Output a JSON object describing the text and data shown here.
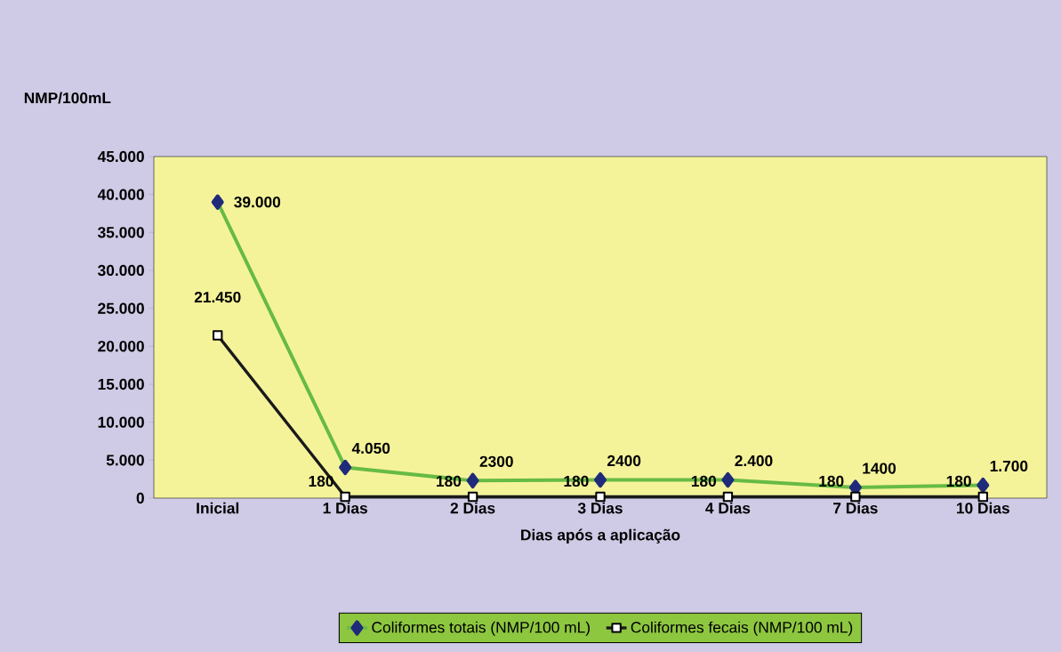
{
  "chart_data": {
    "type": "line",
    "annotations": [
      "NMP/100mL"
    ],
    "xlabel": "Dias após a aplicação",
    "categories": [
      "Inicial",
      "1 Dias",
      "2 Dias",
      "3 Dias",
      "4 Dias",
      "7 Dias",
      "10 Dias"
    ],
    "series": [
      {
        "name": "Coliformes totais (NMP/100 mL)",
        "color": "#66bb44",
        "marker": "diamond",
        "values": [
          39000,
          4050,
          2300,
          2400,
          2400,
          1400,
          1700
        ],
        "value_labels": [
          "39.000",
          "4.050",
          "2300",
          "2400",
          "2.400",
          "1400",
          "1.700"
        ]
      },
      {
        "name": "Coliformes fecais (NMP/100 mL)",
        "color": "#1a1a1a",
        "marker": "square",
        "values": [
          21450,
          180,
          180,
          180,
          180,
          180,
          180
        ],
        "value_labels": [
          "21.450",
          "180",
          "180",
          "180",
          "180",
          "180",
          "180"
        ]
      }
    ],
    "ylim": [
      0,
      45000
    ],
    "yticks": [
      0,
      {
        "value": 5000,
        "label": "5.000"
      },
      {
        "value": 10000,
        "label": "10.000"
      },
      {
        "value": 15000,
        "label": "15.000"
      },
      {
        "value": 20000,
        "label": "20.000"
      },
      {
        "value": 25000,
        "label": "25.000"
      },
      {
        "value": 30000,
        "label": "30.000"
      },
      {
        "value": 35000,
        "label": "35.000"
      },
      {
        "value": 40000,
        "label": "40.000"
      },
      {
        "value": 45000,
        "label": "45.000"
      }
    ],
    "grid": false,
    "legend": "bottom"
  }
}
